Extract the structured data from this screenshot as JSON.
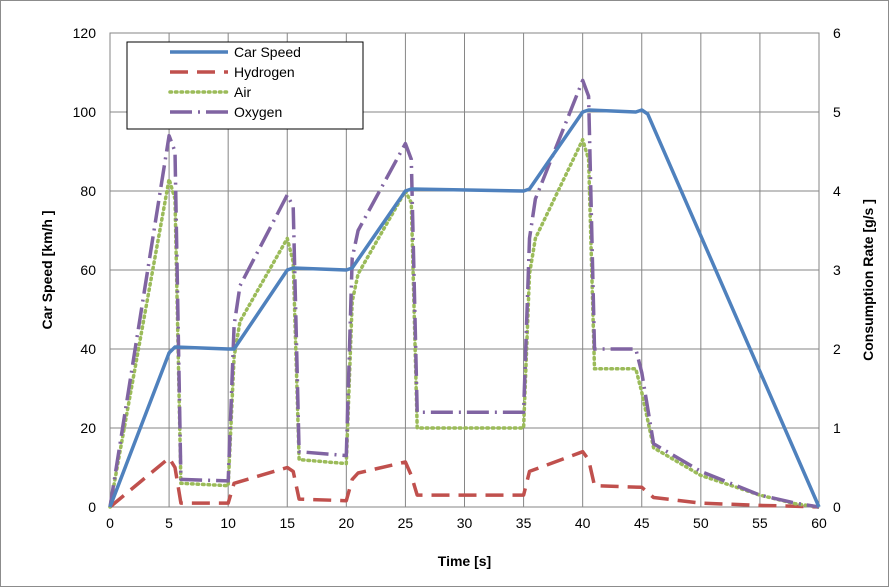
{
  "chart_data": {
    "type": "line",
    "title": "",
    "xlabel": "Time [s]",
    "ylabel_left": "Car Speed [km/h ]",
    "ylabel_right": "Consumption  Rate [g/s ]",
    "xlim": [
      0,
      60
    ],
    "ylim_left": [
      0,
      120
    ],
    "ylim_right": [
      0,
      6
    ],
    "x_ticks": [
      "0",
      "5",
      "10",
      "15",
      "20",
      "25",
      "30",
      "35",
      "40",
      "45",
      "50",
      "55",
      "60"
    ],
    "y_left_ticks": [
      "0",
      "20",
      "40",
      "60",
      "80",
      "100",
      "120"
    ],
    "y_right_ticks": [
      "0",
      "1",
      "2",
      "3",
      "4",
      "5",
      "6"
    ],
    "grid": true,
    "legend_position": "top-left",
    "series": [
      {
        "name": "Car Speed",
        "axis": "left",
        "color": "#4f81bd",
        "style": "solid",
        "x": [
          0,
          5,
          5.5,
          10,
          10.5,
          15,
          15.5,
          20,
          20.5,
          25,
          25.5,
          35,
          35.5,
          40,
          40.5,
          44.5,
          45,
          45.5,
          60
        ],
        "y": [
          0,
          39,
          40.5,
          40,
          40,
          60,
          60.5,
          60,
          60.5,
          80,
          80.5,
          80,
          80.5,
          100,
          100.5,
          100,
          100.5,
          99.5,
          0
        ]
      },
      {
        "name": "Hydrogen",
        "axis": "right",
        "color": "#c0504d",
        "style": "dashed",
        "x": [
          0,
          5,
          5.5,
          6,
          10,
          10.5,
          15,
          15.5,
          16,
          20,
          20.5,
          21,
          25,
          25.5,
          26,
          35,
          35.5,
          40,
          40.5,
          41,
          45,
          46,
          50,
          55,
          58,
          60
        ],
        "y": [
          0,
          0.62,
          0.5,
          0.05,
          0.05,
          0.3,
          0.5,
          0.45,
          0.1,
          0.08,
          0.35,
          0.43,
          0.57,
          0.4,
          0.15,
          0.15,
          0.45,
          0.7,
          0.6,
          0.27,
          0.25,
          0.12,
          0.05,
          0.02,
          0.01,
          0.0
        ]
      },
      {
        "name": "Air",
        "axis": "right",
        "color": "#9bbb59",
        "style": "dotted",
        "x": [
          0,
          5,
          5.5,
          6,
          10,
          10.5,
          11,
          15,
          15.5,
          16,
          20,
          20.5,
          21,
          25,
          25.5,
          26,
          35,
          35.5,
          36,
          40,
          40.5,
          41,
          44.5,
          45,
          46,
          50,
          55,
          58,
          60
        ],
        "y": [
          0,
          4.15,
          3.9,
          0.3,
          0.27,
          1.9,
          2.35,
          3.4,
          3.1,
          0.6,
          0.55,
          2.6,
          2.95,
          4.0,
          3.85,
          1.0,
          1.0,
          2.95,
          3.4,
          4.65,
          4.4,
          1.75,
          1.75,
          1.45,
          0.75,
          0.4,
          0.15,
          0.04,
          0.0
        ]
      },
      {
        "name": "Oxygen",
        "axis": "right",
        "color": "#8064a2",
        "style": "dashdot",
        "x": [
          0,
          5,
          5.5,
          6,
          10,
          10.5,
          11,
          15,
          15.5,
          16,
          20,
          20.5,
          21,
          25,
          25.5,
          26,
          35,
          35.5,
          36,
          40,
          40.5,
          41,
          44.5,
          45,
          46,
          50,
          55,
          58,
          60
        ],
        "y": [
          0,
          4.7,
          4.5,
          0.35,
          0.33,
          2.3,
          2.8,
          3.95,
          3.8,
          0.7,
          0.65,
          3.15,
          3.5,
          4.6,
          4.4,
          1.2,
          1.2,
          3.4,
          3.9,
          5.4,
          5.2,
          2.0,
          2.0,
          1.7,
          0.8,
          0.45,
          0.15,
          0.05,
          0.0
        ]
      }
    ]
  }
}
